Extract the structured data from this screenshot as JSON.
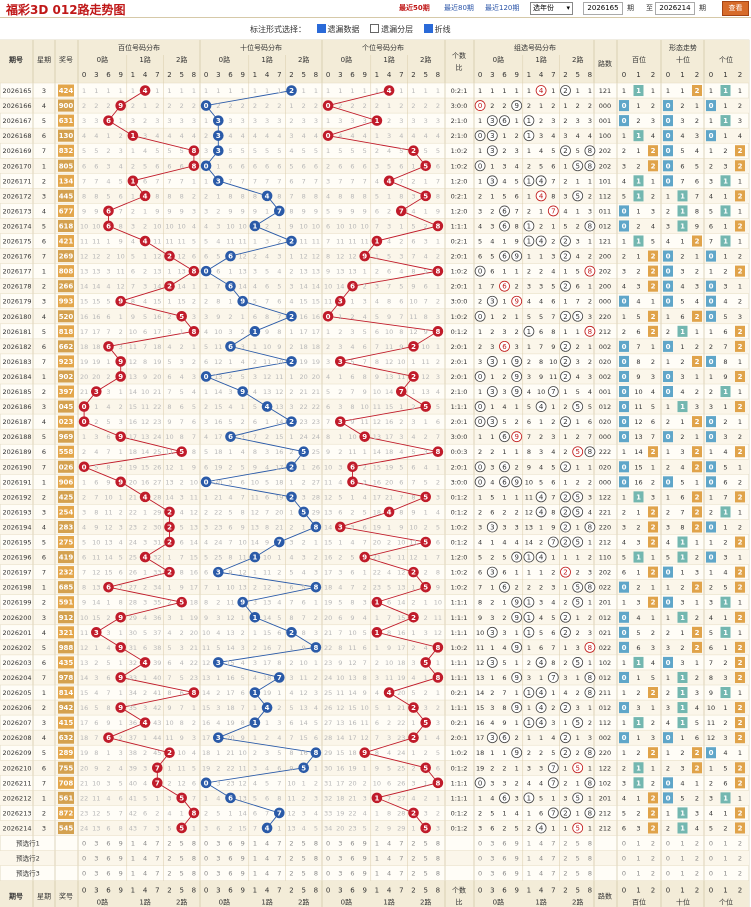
{
  "title": "福彩3D 012路走势图",
  "range_links": [
    {
      "label": "最近50期",
      "active": true
    },
    {
      "label": "最近80期",
      "active": false
    },
    {
      "label": "最近120期",
      "active": false
    }
  ],
  "year_select": "选年份",
  "start_issue": "2026165",
  "period_label": "期",
  "to_label": "至",
  "end_issue": "2026214",
  "query_button": "查看",
  "options": {
    "label": "标注形式选择：",
    "items": [
      {
        "label": "遗漏数据",
        "checked": true
      },
      {
        "label": "遗漏分层",
        "checked": false
      },
      {
        "label": "折线",
        "checked": true
      }
    ]
  },
  "headers": {
    "issue": "期号",
    "weekday": "星期",
    "prize": "奖号",
    "groups": [
      "百位号码分布",
      "十位号码分布",
      "个位号码分布",
      "组选号码分布",
      "形态走势"
    ],
    "count_ratio": "个数比",
    "route_labels": [
      "0路",
      "1路",
      "2路"
    ],
    "shape_labels": [
      "路数",
      "百位",
      "十位",
      "个位"
    ],
    "digit_columns": [
      "0",
      "3",
      "6",
      "9",
      "1",
      "4",
      "7",
      "2",
      "5",
      "8"
    ],
    "route_digits": [
      "0",
      "1",
      "2"
    ]
  },
  "preselect_rows": [
    "预选行1",
    "预选行2",
    "预选行3"
  ],
  "rows": [
    {
      "issue": "2026165",
      "week": "3",
      "prize": "424"
    },
    {
      "issue": "2026166",
      "week": "4",
      "prize": "900"
    },
    {
      "issue": "2026167",
      "week": "5",
      "prize": "631"
    },
    {
      "issue": "2026168",
      "week": "6",
      "prize": "130"
    },
    {
      "issue": "2026169",
      "week": "7",
      "prize": "832"
    },
    {
      "issue": "2026170",
      "week": "1",
      "prize": "805"
    },
    {
      "issue": "2026171",
      "week": "2",
      "prize": "134"
    },
    {
      "issue": "2026172",
      "week": "3",
      "prize": "445"
    },
    {
      "issue": "2026173",
      "week": "4",
      "prize": "677"
    },
    {
      "issue": "2026174",
      "week": "5",
      "prize": "618"
    },
    {
      "issue": "2026175",
      "week": "6",
      "prize": "421"
    },
    {
      "issue": "2026176",
      "week": "7",
      "prize": "269"
    },
    {
      "issue": "2026177",
      "week": "1",
      "prize": "808"
    },
    {
      "issue": "2026178",
      "week": "2",
      "prize": "266"
    },
    {
      "issue": "2026179",
      "week": "3",
      "prize": "993"
    },
    {
      "issue": "2026180",
      "week": "4",
      "prize": "520"
    },
    {
      "issue": "2026181",
      "week": "5",
      "prize": "818"
    },
    {
      "issue": "2026182",
      "week": "6",
      "prize": "662"
    },
    {
      "issue": "2026183",
      "week": "7",
      "prize": "923"
    },
    {
      "issue": "2026184",
      "week": "1",
      "prize": "902"
    },
    {
      "issue": "2026185",
      "week": "2",
      "prize": "397"
    },
    {
      "issue": "2026186",
      "week": "3",
      "prize": "045"
    },
    {
      "issue": "2026187",
      "week": "4",
      "prize": "023"
    },
    {
      "issue": "2026188",
      "week": "5",
      "prize": "969"
    },
    {
      "issue": "2026189",
      "week": "6",
      "prize": "558"
    },
    {
      "issue": "2026190",
      "week": "7",
      "prize": "026"
    },
    {
      "issue": "2026191",
      "week": "1",
      "prize": "906"
    },
    {
      "issue": "2026192",
      "week": "2",
      "prize": "425"
    },
    {
      "issue": "2026193",
      "week": "3",
      "prize": "254"
    },
    {
      "issue": "2026194",
      "week": "4",
      "prize": "283"
    },
    {
      "issue": "2026195",
      "week": "5",
      "prize": "275"
    },
    {
      "issue": "2026196",
      "week": "6",
      "prize": "419"
    },
    {
      "issue": "2026197",
      "week": "7",
      "prize": "232"
    },
    {
      "issue": "2026198",
      "week": "1",
      "prize": "685"
    },
    {
      "issue": "2026199",
      "week": "2",
      "prize": "591"
    },
    {
      "issue": "2026200",
      "week": "3",
      "prize": "912"
    },
    {
      "issue": "2026201",
      "week": "4",
      "prize": "321"
    },
    {
      "issue": "2026202",
      "week": "5",
      "prize": "988"
    },
    {
      "issue": "2026203",
      "week": "6",
      "prize": "435"
    },
    {
      "issue": "2026204",
      "week": "7",
      "prize": "978"
    },
    {
      "issue": "2026205",
      "week": "1",
      "prize": "814"
    },
    {
      "issue": "2026206",
      "week": "2",
      "prize": "942"
    },
    {
      "issue": "2026207",
      "week": "3",
      "prize": "415"
    },
    {
      "issue": "2026208",
      "week": "4",
      "prize": "632"
    },
    {
      "issue": "2026209",
      "week": "5",
      "prize": "289"
    },
    {
      "issue": "2026210",
      "week": "6",
      "prize": "755"
    },
    {
      "issue": "2026211",
      "week": "7",
      "prize": "708"
    },
    {
      "issue": "2026212",
      "week": "1",
      "prize": "561"
    },
    {
      "issue": "2026213",
      "week": "2",
      "prize": "872"
    },
    {
      "issue": "2026214",
      "week": "3",
      "prize": "545"
    }
  ],
  "colors": {
    "accent": "#c01818",
    "line_blue": "#2a5aa8",
    "prize_bg": "#e3a64b",
    "header_bg": "#f3ecd8",
    "row_bg": "#fffdf7"
  }
}
